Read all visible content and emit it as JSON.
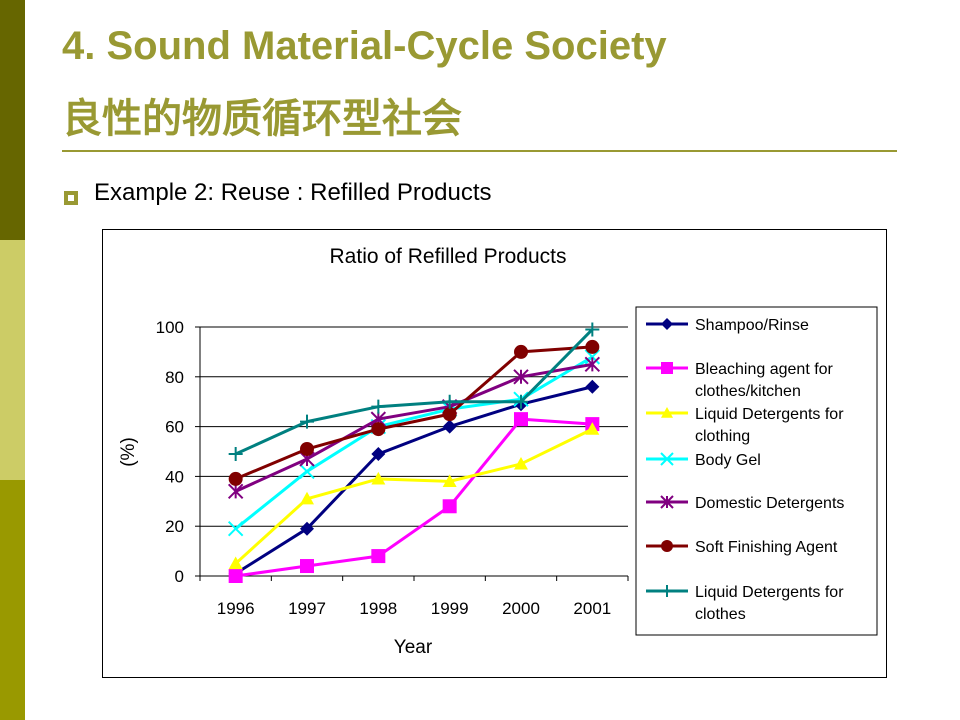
{
  "slide": {
    "title_line1": "4. Sound Material-Cycle Society",
    "title_line2": "良性的物质循环型社会",
    "bullet": "Example 2: Reuse : Refilled Products",
    "accent_color": "#999933",
    "band_colors": [
      "#666600",
      "#cccc66",
      "#999900"
    ]
  },
  "chart_data": {
    "type": "line",
    "title": "Ratio of Refilled Products",
    "xlabel": "Year",
    "ylabel": "(%)",
    "categories": [
      "1996",
      "1997",
      "1998",
      "1999",
      "2000",
      "2001"
    ],
    "ylim": [
      0,
      100
    ],
    "yticks": [
      "0",
      "20",
      "40",
      "60",
      "80",
      "100"
    ],
    "grid": "horizontal",
    "legend": "right",
    "series": [
      {
        "name": "Shampoo/Rinse",
        "values": [
          1,
          19,
          49,
          60,
          69,
          76
        ],
        "color": "#000080",
        "marker": "diamond"
      },
      {
        "name": "Bleaching agent for clothes/kitchen",
        "values": [
          0,
          4,
          8,
          28,
          63,
          61
        ],
        "color": "#ff00ff",
        "marker": "square"
      },
      {
        "name": "Liquid Detergents for clothing",
        "values": [
          5,
          31,
          39,
          38,
          45,
          59
        ],
        "color": "#ffff00",
        "marker": "triangle"
      },
      {
        "name": "Body Gel",
        "values": [
          19,
          42,
          60,
          67,
          71,
          88
        ],
        "color": "#00ffff",
        "marker": "x"
      },
      {
        "name": "Domestic Detergents",
        "values": [
          34,
          47,
          63,
          68,
          80,
          85
        ],
        "color": "#800080",
        "marker": "star"
      },
      {
        "name": "Soft Finishing Agent",
        "values": [
          39,
          51,
          59,
          65,
          90,
          92
        ],
        "color": "#800000",
        "marker": "circle"
      },
      {
        "name": "Liquid Detergents for clothes",
        "values": [
          49,
          62,
          68,
          70,
          70,
          99
        ],
        "color": "#008080",
        "marker": "plus"
      }
    ],
    "legend_lines": [
      [
        "Shampoo/Rinse"
      ],
      [
        "Bleaching agent for",
        "clothes/kitchen"
      ],
      [
        "Liquid Detergents for",
        "clothing"
      ],
      [
        "Body Gel"
      ],
      [
        "Domestic Detergents"
      ],
      [
        "Soft Finishing Agent"
      ],
      [
        "Liquid Detergents for",
        "clothes"
      ]
    ]
  }
}
